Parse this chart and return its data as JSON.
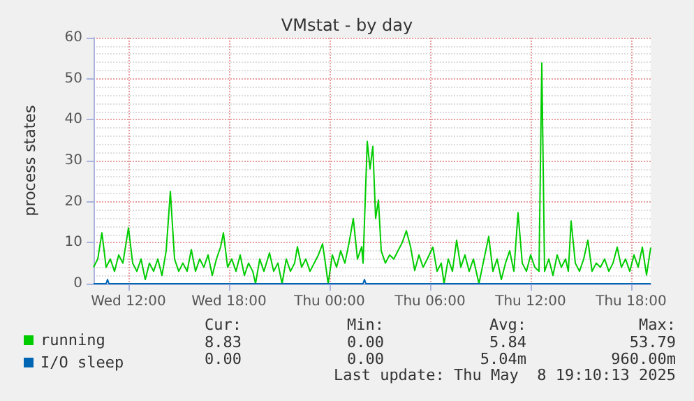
{
  "chart_data": {
    "type": "line",
    "title": "VMstat - by day",
    "ylabel": "process states",
    "xlim": [
      "2025-05-07T09:55",
      "2025-05-08T19:10"
    ],
    "xticks": [
      {
        "value": "2025-05-07T12:00",
        "label": "Wed 12:00"
      },
      {
        "value": "2025-05-07T18:00",
        "label": "Wed 18:00"
      },
      {
        "value": "2025-05-08T00:00",
        "label": "Thu 00:00"
      },
      {
        "value": "2025-05-08T06:00",
        "label": "Thu 06:00"
      },
      {
        "value": "2025-05-08T12:00",
        "label": "Thu 12:00"
      },
      {
        "value": "2025-05-08T18:00",
        "label": "Thu 18:00"
      }
    ],
    "ylim": [
      0,
      60
    ],
    "yticks": [
      0,
      10,
      20,
      30,
      40,
      50,
      60
    ],
    "grid": true,
    "legend": "bottom left",
    "marker": "none",
    "line_style": "solid",
    "x": [
      "2025-05-07T09:55",
      "2025-05-07T10:10",
      "2025-05-07T10:25",
      "2025-05-07T10:40",
      "2025-05-07T10:55",
      "2025-05-07T11:10",
      "2025-05-07T11:25",
      "2025-05-07T11:40",
      "2025-05-07T12:00",
      "2025-05-07T12:15",
      "2025-05-07T12:30",
      "2025-05-07T12:45",
      "2025-05-07T13:00",
      "2025-05-07T13:15",
      "2025-05-07T13:30",
      "2025-05-07T13:45",
      "2025-05-07T14:00",
      "2025-05-07T14:15",
      "2025-05-07T14:30",
      "2025-05-07T14:45",
      "2025-05-07T15:00",
      "2025-05-07T15:15",
      "2025-05-07T15:30",
      "2025-05-07T15:45",
      "2025-05-07T16:00",
      "2025-05-07T16:15",
      "2025-05-07T16:30",
      "2025-05-07T16:45",
      "2025-05-07T17:00",
      "2025-05-07T17:15",
      "2025-05-07T17:30",
      "2025-05-07T17:40",
      "2025-05-07T17:55",
      "2025-05-07T18:10",
      "2025-05-07T18:25",
      "2025-05-07T18:40",
      "2025-05-07T18:55",
      "2025-05-07T19:10",
      "2025-05-07T19:25",
      "2025-05-07T19:35",
      "2025-05-07T19:50",
      "2025-05-07T20:05",
      "2025-05-07T20:25",
      "2025-05-07T20:40",
      "2025-05-07T20:55",
      "2025-05-07T21:10",
      "2025-05-07T21:25",
      "2025-05-07T21:40",
      "2025-05-07T21:55",
      "2025-05-07T22:05",
      "2025-05-07T22:20",
      "2025-05-07T22:35",
      "2025-05-07T22:50",
      "2025-05-07T23:05",
      "2025-05-07T23:20",
      "2025-05-07T23:35",
      "2025-05-07T23:45",
      "2025-05-07T23:55",
      "2025-05-08T00:10",
      "2025-05-08T00:25",
      "2025-05-08T00:40",
      "2025-05-08T00:55",
      "2025-05-08T01:10",
      "2025-05-08T01:25",
      "2025-05-08T01:40",
      "2025-05-08T01:55",
      "2025-05-08T02:00",
      "2025-05-08T02:15",
      "2025-05-08T02:25",
      "2025-05-08T02:35",
      "2025-05-08T02:45",
      "2025-05-08T02:55",
      "2025-05-08T03:05",
      "2025-05-08T03:20",
      "2025-05-08T03:35",
      "2025-05-08T03:50",
      "2025-05-08T04:05",
      "2025-05-08T04:20",
      "2025-05-08T04:35",
      "2025-05-08T04:50",
      "2025-05-08T05:05",
      "2025-05-08T05:20",
      "2025-05-08T05:35",
      "2025-05-08T05:50",
      "2025-05-08T06:10",
      "2025-05-08T06:25",
      "2025-05-08T06:40",
      "2025-05-08T06:50",
      "2025-05-08T07:05",
      "2025-05-08T07:20",
      "2025-05-08T07:35",
      "2025-05-08T07:50",
      "2025-05-08T08:05",
      "2025-05-08T08:20",
      "2025-05-08T08:35",
      "2025-05-08T08:55",
      "2025-05-08T09:10",
      "2025-05-08T09:30",
      "2025-05-08T09:45",
      "2025-05-08T10:00",
      "2025-05-08T10:15",
      "2025-05-08T10:30",
      "2025-05-08T10:45",
      "2025-05-08T11:00",
      "2025-05-08T11:15",
      "2025-05-08T11:30",
      "2025-05-08T11:45",
      "2025-05-08T12:00",
      "2025-05-08T12:15",
      "2025-05-08T12:30",
      "2025-05-08T12:40",
      "2025-05-08T12:50",
      "2025-05-08T13:05",
      "2025-05-08T13:20",
      "2025-05-08T13:35",
      "2025-05-08T13:50",
      "2025-05-08T14:05",
      "2025-05-08T14:15",
      "2025-05-08T14:25",
      "2025-05-08T14:40",
      "2025-05-08T14:55",
      "2025-05-08T15:10",
      "2025-05-08T15:25",
      "2025-05-08T15:40",
      "2025-05-08T15:55",
      "2025-05-08T16:10",
      "2025-05-08T16:25",
      "2025-05-08T16:40",
      "2025-05-08T16:55",
      "2025-05-08T17:10",
      "2025-05-08T17:25",
      "2025-05-08T17:40",
      "2025-05-08T17:55",
      "2025-05-08T18:10",
      "2025-05-08T18:25",
      "2025-05-08T18:40",
      "2025-05-08T18:55",
      "2025-05-08T19:10"
    ],
    "series": [
      {
        "name": "running",
        "color": "#00cc00",
        "values": [
          4,
          6,
          12.4,
          4,
          6,
          3,
          7,
          5,
          13.6,
          5,
          3,
          6,
          1,
          5,
          3,
          6,
          2,
          8,
          22.5,
          6,
          3,
          5,
          3,
          8.3,
          3,
          6,
          4,
          7,
          2,
          6,
          9,
          12.4,
          4,
          6,
          3,
          7,
          2,
          5,
          3,
          0,
          6,
          3,
          7.5,
          3,
          5,
          0,
          6,
          3,
          5,
          9,
          4,
          6,
          3,
          5,
          7,
          9.7,
          5,
          0,
          7,
          4,
          8,
          5,
          10,
          15.9,
          6,
          9,
          5,
          34.7,
          28,
          33.5,
          15.9,
          20.4,
          8,
          5,
          7,
          6,
          8,
          10,
          12.9,
          9,
          3.2,
          7,
          4,
          6,
          8.9,
          3,
          5,
          0,
          6,
          3,
          10.6,
          4,
          7,
          3,
          6,
          0,
          5,
          11.5,
          3,
          6,
          1,
          5,
          8,
          3,
          17.3,
          5,
          3,
          7,
          4,
          3,
          53.8,
          3,
          6,
          2,
          7,
          4,
          6,
          3,
          15.3,
          5,
          3,
          6,
          10.6,
          3,
          5,
          4,
          6,
          3,
          5,
          8.9,
          4,
          6,
          3,
          7,
          4,
          8.9,
          2.1,
          8.8
        ]
      },
      {
        "name": "I/O sleep",
        "color": "#0066b3",
        "x": [
          "2025-05-07T09:55",
          "2025-05-07T10:40",
          "2025-05-07T10:45",
          "2025-05-07T10:50",
          "2025-05-08T02:00",
          "2025-05-08T02:05",
          "2025-05-08T02:10",
          "2025-05-08T19:10"
        ],
        "values": [
          0,
          0,
          1,
          0,
          0,
          1,
          0,
          0
        ]
      }
    ],
    "annotations": [
      "Cur:",
      "Min:",
      "Avg:",
      "Max:",
      "8.83",
      "0.00",
      "5.84",
      "53.79",
      "0.00",
      "0.00",
      "5.04m",
      "960.00m",
      "Last update: Thu May  8 19:10:13 2025"
    ]
  }
}
